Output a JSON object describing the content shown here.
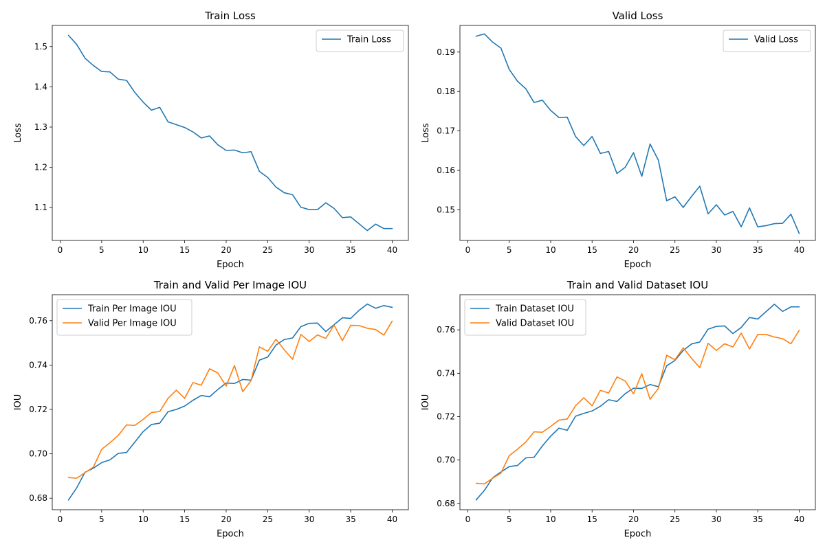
{
  "chart_data": [
    {
      "type": "line",
      "title": "Train Loss",
      "xlabel": "Epoch",
      "ylabel": "Loss",
      "xlim": [
        -0.95,
        41.95
      ],
      "ylim": [
        1.0185,
        1.5525
      ],
      "xticks": [
        0,
        5,
        10,
        15,
        20,
        25,
        30,
        35,
        40
      ],
      "xtick_labels": [
        "0",
        "5",
        "10",
        "15",
        "20",
        "25",
        "30",
        "35",
        "40"
      ],
      "yticks": [
        1.1,
        1.2,
        1.3,
        1.4,
        1.5
      ],
      "ytick_labels": [
        "1.1",
        "1.2",
        "1.3",
        "1.4",
        "1.5"
      ],
      "legend_position": "top-right",
      "grid": false,
      "x": [
        1,
        2,
        3,
        4,
        5,
        6,
        7,
        8,
        9,
        10,
        11,
        12,
        13,
        14,
        15,
        16,
        17,
        18,
        19,
        20,
        21,
        22,
        23,
        24,
        25,
        26,
        27,
        28,
        29,
        30,
        31,
        32,
        33,
        34,
        35,
        36,
        37,
        38,
        39,
        40
      ],
      "series": [
        {
          "name": "Train Loss",
          "color": "#1f77b4",
          "values": [
            1.528,
            1.505,
            1.471,
            1.453,
            1.438,
            1.437,
            1.419,
            1.416,
            1.386,
            1.362,
            1.342,
            1.349,
            1.313,
            1.306,
            1.299,
            1.288,
            1.273,
            1.278,
            1.256,
            1.242,
            1.243,
            1.236,
            1.239,
            1.19,
            1.175,
            1.151,
            1.137,
            1.132,
            1.101,
            1.095,
            1.095,
            1.112,
            1.098,
            1.075,
            1.077,
            1.06,
            1.043,
            1.059,
            1.048,
            1.048
          ]
        }
      ]
    },
    {
      "type": "line",
      "title": "Valid Loss",
      "xlabel": "Epoch",
      "ylabel": "Loss",
      "xlim": [
        -0.95,
        41.95
      ],
      "ylim": [
        0.14225,
        0.19675
      ],
      "xticks": [
        0,
        5,
        10,
        15,
        20,
        25,
        30,
        35,
        40
      ],
      "xtick_labels": [
        "0",
        "5",
        "10",
        "15",
        "20",
        "25",
        "30",
        "35",
        "40"
      ],
      "yticks": [
        0.15,
        0.16,
        0.17,
        0.18,
        0.19
      ],
      "ytick_labels": [
        "0.15",
        "0.16",
        "0.17",
        "0.18",
        "0.19"
      ],
      "legend_position": "top-right",
      "grid": false,
      "x": [
        1,
        2,
        3,
        4,
        5,
        6,
        7,
        8,
        9,
        10,
        11,
        12,
        13,
        14,
        15,
        16,
        17,
        18,
        19,
        20,
        21,
        22,
        23,
        24,
        25,
        26,
        27,
        28,
        29,
        30,
        31,
        32,
        33,
        34,
        35,
        36,
        37,
        38,
        39,
        40
      ],
      "series": [
        {
          "name": "Valid Loss",
          "color": "#1f77b4",
          "values": [
            0.194,
            0.1946,
            0.1925,
            0.191,
            0.1856,
            0.1826,
            0.1807,
            0.1772,
            0.1778,
            0.1752,
            0.1734,
            0.1735,
            0.1686,
            0.1663,
            0.1686,
            0.1643,
            0.1648,
            0.1592,
            0.1608,
            0.1645,
            0.1585,
            0.1667,
            0.1626,
            0.1523,
            0.1533,
            0.1506,
            0.1534,
            0.156,
            0.149,
            0.1513,
            0.1487,
            0.1496,
            0.1457,
            0.1505,
            0.1457,
            0.146,
            0.1465,
            0.1466,
            0.1489,
            0.144
          ]
        }
      ]
    },
    {
      "type": "line",
      "title": "Train and Valid Per Image IOU",
      "xlabel": "Epoch",
      "ylabel": "IOU",
      "xlim": [
        -0.95,
        41.95
      ],
      "ylim": [
        0.6748,
        0.7717
      ],
      "xticks": [
        0,
        5,
        10,
        15,
        20,
        25,
        30,
        35,
        40
      ],
      "xtick_labels": [
        "0",
        "5",
        "10",
        "15",
        "20",
        "25",
        "30",
        "35",
        "40"
      ],
      "yticks": [
        0.68,
        0.7,
        0.72,
        0.74,
        0.76
      ],
      "ytick_labels": [
        "0.68",
        "0.70",
        "0.72",
        "0.74",
        "0.76"
      ],
      "legend_position": "top-left",
      "grid": false,
      "x": [
        1,
        2,
        3,
        4,
        5,
        6,
        7,
        8,
        9,
        10,
        11,
        12,
        13,
        14,
        15,
        16,
        17,
        18,
        19,
        20,
        21,
        22,
        23,
        24,
        25,
        26,
        27,
        28,
        29,
        30,
        31,
        32,
        33,
        34,
        35,
        36,
        37,
        38,
        39,
        40
      ],
      "series": [
        {
          "name": "Train Per Image IOU",
          "color": "#1f77b4",
          "values": [
            0.6792,
            0.6847,
            0.6917,
            0.6935,
            0.696,
            0.6973,
            0.7002,
            0.7006,
            0.7053,
            0.71,
            0.7132,
            0.7138,
            0.719,
            0.72,
            0.7215,
            0.7241,
            0.7263,
            0.7257,
            0.729,
            0.7319,
            0.7317,
            0.7335,
            0.7332,
            0.7422,
            0.7436,
            0.749,
            0.7515,
            0.7522,
            0.7573,
            0.7588,
            0.7589,
            0.7551,
            0.7582,
            0.7613,
            0.761,
            0.7646,
            0.7675,
            0.7656,
            0.7668,
            0.766
          ]
        },
        {
          "name": "Valid Per Image IOU",
          "color": "#ff7f0e",
          "values": [
            0.6893,
            0.689,
            0.6915,
            0.694,
            0.702,
            0.705,
            0.7083,
            0.713,
            0.7128,
            0.7155,
            0.7186,
            0.7191,
            0.725,
            0.7287,
            0.725,
            0.7321,
            0.7309,
            0.7383,
            0.7364,
            0.7305,
            0.7398,
            0.728,
            0.733,
            0.7482,
            0.7462,
            0.7516,
            0.7469,
            0.7426,
            0.7538,
            0.7506,
            0.7536,
            0.752,
            0.758,
            0.751,
            0.7579,
            0.7578,
            0.7566,
            0.756,
            0.7535,
            0.7598
          ]
        }
      ]
    },
    {
      "type": "line",
      "title": "Train and Valid Dataset IOU",
      "xlabel": "Epoch",
      "ylabel": "IOU",
      "xlim": [
        -0.95,
        41.95
      ],
      "ylim": [
        0.6771,
        0.7762
      ],
      "xticks": [
        0,
        5,
        10,
        15,
        20,
        25,
        30,
        35,
        40
      ],
      "xtick_labels": [
        "0",
        "5",
        "10",
        "15",
        "20",
        "25",
        "30",
        "35",
        "40"
      ],
      "yticks": [
        0.68,
        0.7,
        0.72,
        0.74,
        0.76
      ],
      "ytick_labels": [
        "0.68",
        "0.70",
        "0.72",
        "0.74",
        "0.76"
      ],
      "legend_position": "top-left",
      "grid": false,
      "x": [
        1,
        2,
        3,
        4,
        5,
        6,
        7,
        8,
        9,
        10,
        11,
        12,
        13,
        14,
        15,
        16,
        17,
        18,
        19,
        20,
        21,
        22,
        23,
        24,
        25,
        26,
        27,
        28,
        29,
        30,
        31,
        32,
        33,
        34,
        35,
        36,
        37,
        38,
        39,
        40
      ],
      "series": [
        {
          "name": "Train Dataset IOU",
          "color": "#1f77b4",
          "values": [
            0.6816,
            0.686,
            0.6918,
            0.6945,
            0.697,
            0.6975,
            0.701,
            0.7013,
            0.7065,
            0.711,
            0.7147,
            0.7137,
            0.7202,
            0.7215,
            0.7226,
            0.7248,
            0.7278,
            0.727,
            0.7306,
            0.7331,
            0.733,
            0.7348,
            0.7338,
            0.7434,
            0.7459,
            0.7505,
            0.7535,
            0.7544,
            0.7603,
            0.7616,
            0.7618,
            0.7583,
            0.7611,
            0.7657,
            0.765,
            0.7684,
            0.7718,
            0.7685,
            0.7706,
            0.7706
          ]
        },
        {
          "name": "Valid Dataset IOU",
          "color": "#ff7f0e",
          "values": [
            0.6893,
            0.689,
            0.6916,
            0.694,
            0.702,
            0.705,
            0.7083,
            0.713,
            0.7128,
            0.7155,
            0.7184,
            0.7189,
            0.725,
            0.7287,
            0.725,
            0.7321,
            0.7309,
            0.7383,
            0.7364,
            0.7305,
            0.7398,
            0.728,
            0.733,
            0.7483,
            0.7462,
            0.7517,
            0.7469,
            0.7426,
            0.7538,
            0.7505,
            0.7536,
            0.7521,
            0.7585,
            0.7512,
            0.7579,
            0.7579,
            0.7567,
            0.7559,
            0.7536,
            0.7598
          ]
        }
      ]
    }
  ]
}
